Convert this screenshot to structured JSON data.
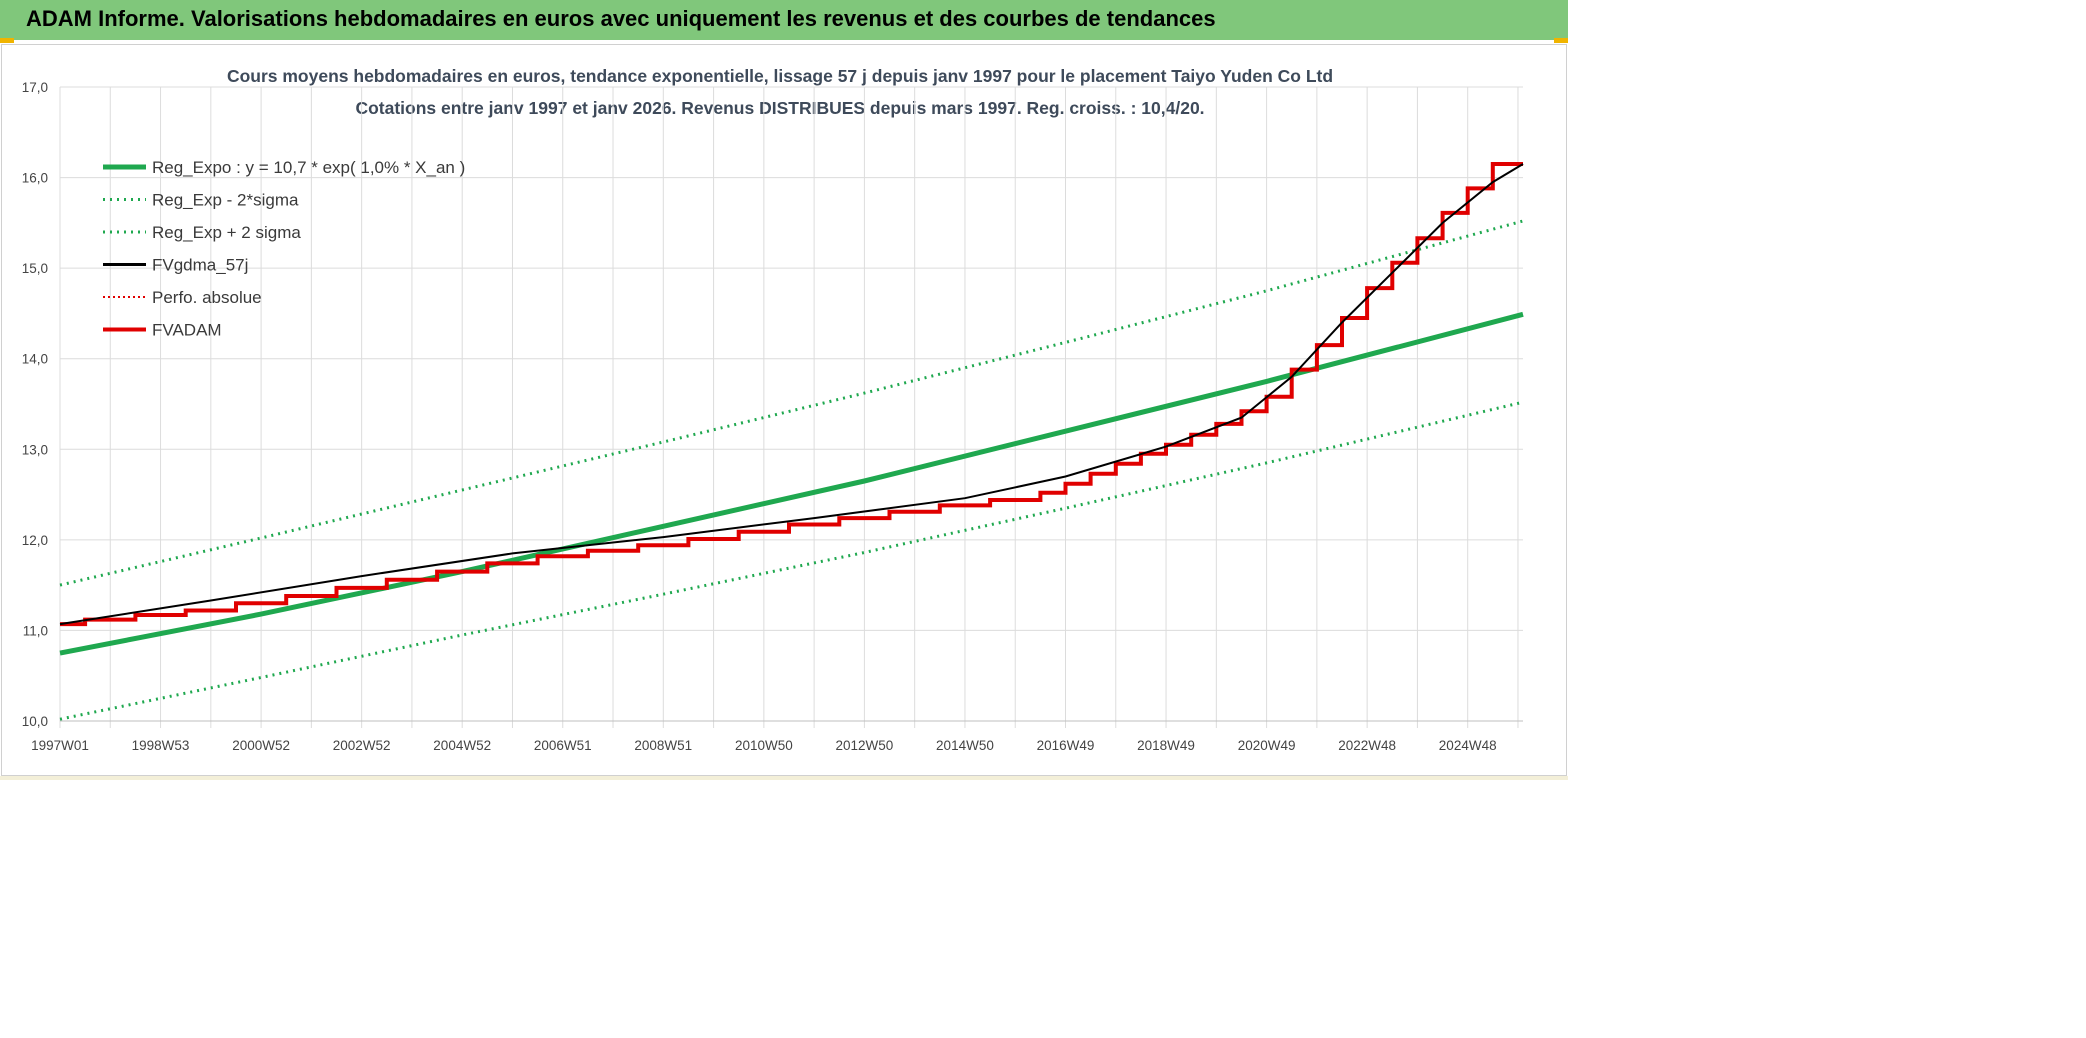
{
  "banner": {
    "title": "ADAM Informe. Valorisations hebdomadaires en euros avec uniquement les revenus et des courbes de tendances"
  },
  "colors": {
    "banner": "#80c77b",
    "green": "#1fa84f",
    "black": "#000000",
    "red": "#e00000",
    "grid": "#dcdcdc"
  },
  "chart_data": {
    "type": "line",
    "title": "Cours moyens hebdomadaires en euros, tendance exponentielle, lissage 57 j depuis janv 1997 pour le placement Taiyo Yuden Co Ltd",
    "subtitle": "Cotations entre janv 1997 et janv 2026. Revenus DISTRIBUES depuis mars 1997. Reg. croiss. : 10,4/20.",
    "xlabel": "",
    "ylabel": "",
    "ylim": [
      10.0,
      17.0
    ],
    "y_ticks": [
      "10,0",
      "11,0",
      "12,0",
      "13,0",
      "14,0",
      "15,0",
      "16,0",
      "17,0"
    ],
    "x_ticks": [
      "1997W01",
      "1998W53",
      "2000W52",
      "2002W52",
      "2004W52",
      "2006W51",
      "2008W51",
      "2010W50",
      "2012W50",
      "2014W50",
      "2016W49",
      "2018W49",
      "2020W49",
      "2022W48",
      "2024W48"
    ],
    "xlim": [
      1997.0,
      2026.1
    ],
    "grid": true,
    "legend_position": "top-left",
    "series": [
      {
        "name": "Reg_Expo : y = 10,7 * exp( 1,0% *  X_an )",
        "color": "#1fa84f",
        "style": "solid-thick",
        "x": [
          1997.0,
          2001.0,
          2005.0,
          2009.0,
          2013.0,
          2017.0,
          2021.0,
          2026.1
        ],
        "y": [
          10.75,
          11.18,
          11.65,
          12.15,
          12.65,
          13.2,
          13.75,
          14.49
        ]
      },
      {
        "name": "Reg_Exp - 2*sigma",
        "color": "#1fa84f",
        "style": "dotted",
        "x": [
          1997.0,
          2001.0,
          2005.0,
          2009.0,
          2013.0,
          2017.0,
          2021.0,
          2026.1
        ],
        "y": [
          10.02,
          10.48,
          10.95,
          11.4,
          11.86,
          12.35,
          12.85,
          13.52
        ]
      },
      {
        "name": "Reg_Exp + 2 sigma",
        "color": "#1fa84f",
        "style": "dotted",
        "x": [
          1997.0,
          2001.0,
          2005.0,
          2009.0,
          2013.0,
          2017.0,
          2021.0,
          2026.1
        ],
        "y": [
          11.5,
          12.02,
          12.55,
          13.08,
          13.62,
          14.18,
          14.75,
          15.52
        ]
      },
      {
        "name": "FVgdma_57j",
        "color": "#000000",
        "style": "solid-thin",
        "x": [
          1997.0,
          2000.0,
          2003.0,
          2006.0,
          2009.0,
          2012.0,
          2015.0,
          2017.0,
          2019.0,
          2020.5,
          2021.5,
          2022.5,
          2023.5,
          2024.5,
          2025.5,
          2026.1
        ],
        "y": [
          11.07,
          11.33,
          11.6,
          11.85,
          12.03,
          12.24,
          12.46,
          12.7,
          13.03,
          13.35,
          13.8,
          14.4,
          14.95,
          15.5,
          15.95,
          16.15
        ]
      },
      {
        "name": "Perfo. absolue",
        "color": "#e00000",
        "style": "dotted",
        "x": [],
        "y": []
      },
      {
        "name": "FVADAM",
        "color": "#e00000",
        "style": "step-thick",
        "x": [
          1997.0,
          1997.5,
          1998.5,
          1999.5,
          2000.5,
          2001.5,
          2002.5,
          2003.5,
          2004.5,
          2005.5,
          2006.5,
          2007.5,
          2008.5,
          2009.5,
          2010.5,
          2011.5,
          2012.5,
          2013.5,
          2014.5,
          2015.5,
          2016.5,
          2017.0,
          2017.5,
          2018.0,
          2018.5,
          2019.0,
          2019.5,
          2020.0,
          2020.5,
          2021.0,
          2021.5,
          2022.0,
          2022.5,
          2023.0,
          2023.5,
          2024.0,
          2024.5,
          2025.0,
          2025.5,
          2026.1
        ],
        "y": [
          11.07,
          11.12,
          11.17,
          11.22,
          11.3,
          11.38,
          11.47,
          11.56,
          11.65,
          11.74,
          11.82,
          11.88,
          11.94,
          12.01,
          12.09,
          12.17,
          12.24,
          12.31,
          12.38,
          12.44,
          12.52,
          12.62,
          12.73,
          12.84,
          12.95,
          13.05,
          13.16,
          13.28,
          13.42,
          13.58,
          13.88,
          14.15,
          14.45,
          14.78,
          15.06,
          15.33,
          15.61,
          15.88,
          16.15,
          16.15
        ]
      }
    ]
  }
}
